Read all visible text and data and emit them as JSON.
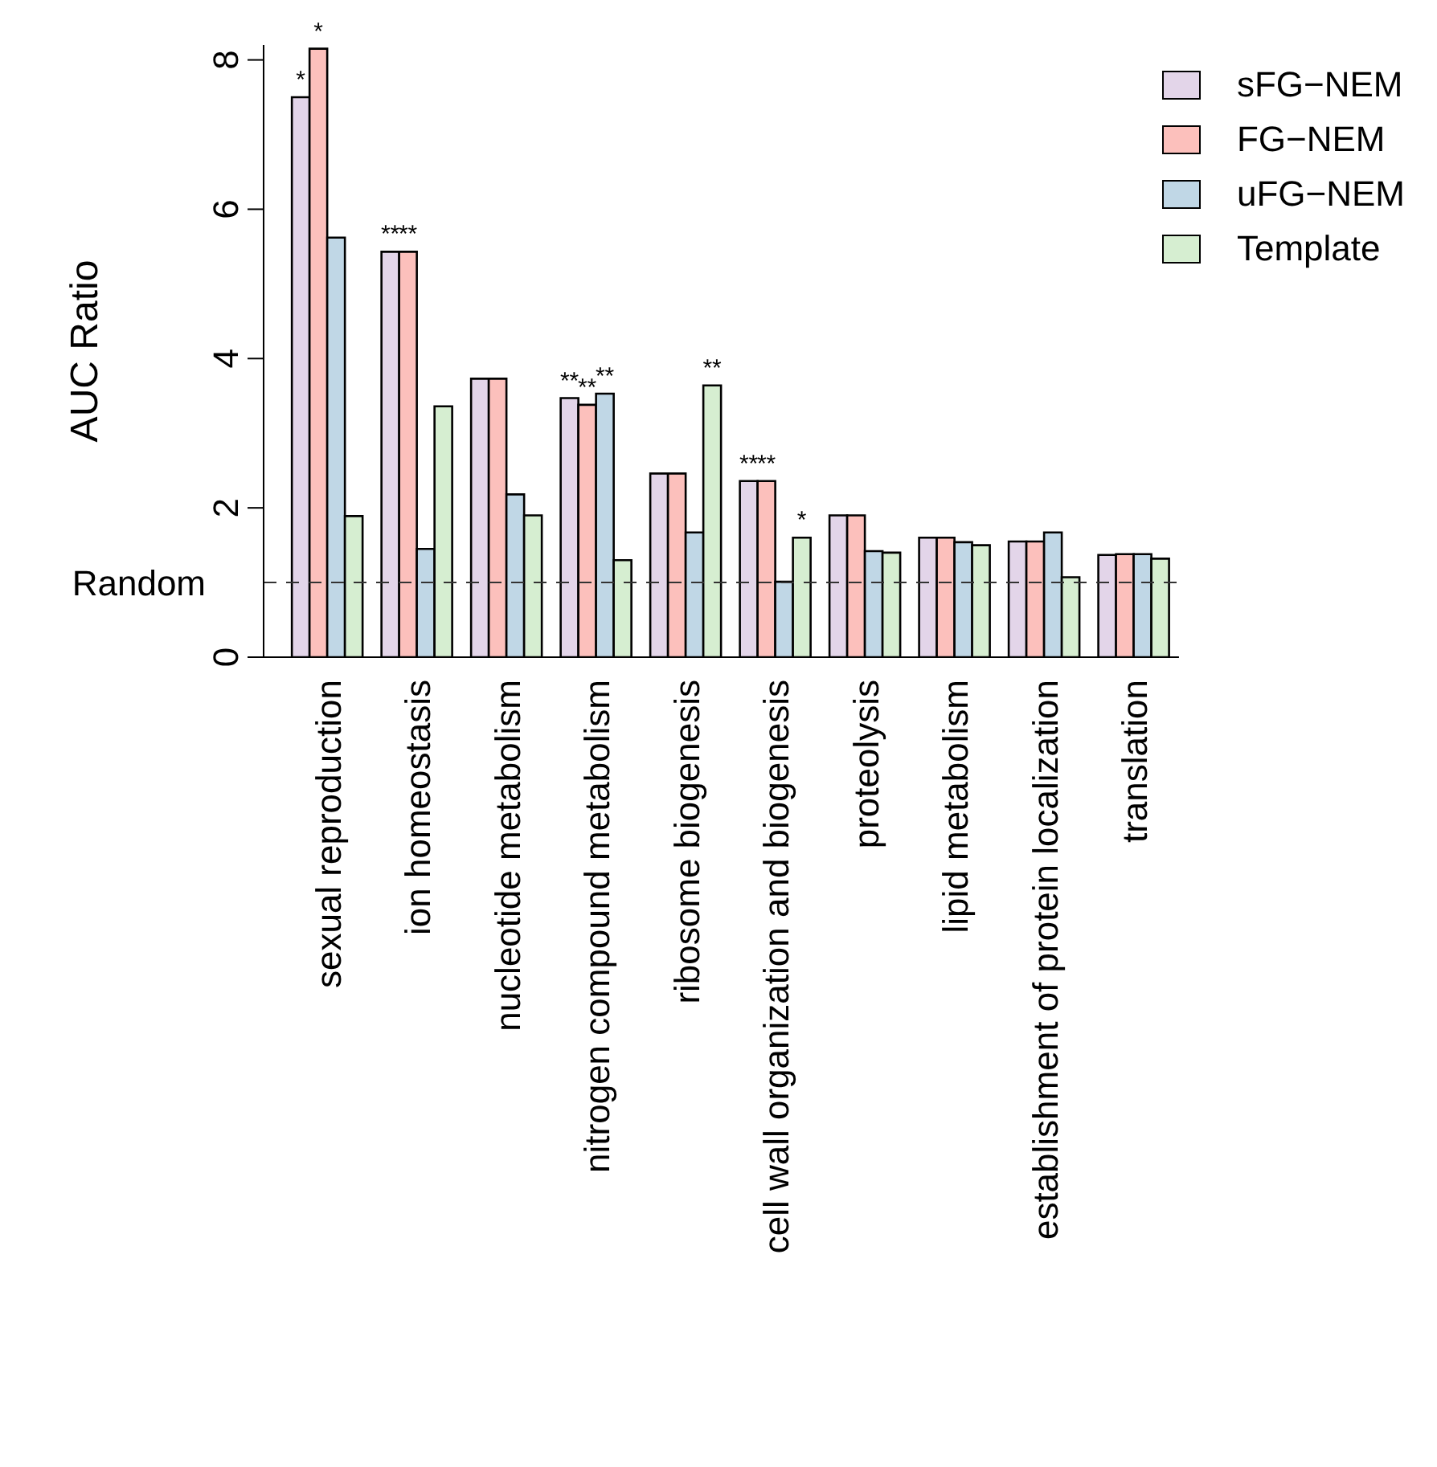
{
  "chart_data": {
    "type": "bar",
    "ylabel": "AUC Ratio",
    "categories": [
      "sexual reproduction",
      "ion homeostasis",
      "nucleotide metabolism",
      "nitrogen compound metabolism",
      "ribosome biogenesis",
      "cell wall organization and biogenesis",
      "proteolysis",
      "lipid metabolism",
      "establishment of protein localization",
      "translation"
    ],
    "series": [
      {
        "name": "sFG−NEM",
        "color": "#e3d5e9",
        "values": [
          7.5,
          5.43,
          3.73,
          3.47,
          2.46,
          2.36,
          1.9,
          1.6,
          1.55,
          1.37
        ],
        "value_labels": [
          "*",
          "**",
          null,
          "**",
          null,
          "**",
          null,
          null,
          null,
          null
        ]
      },
      {
        "name": "FG−NEM",
        "color": "#fcc0bc",
        "values": [
          8.15,
          5.43,
          3.73,
          3.38,
          2.46,
          2.36,
          1.9,
          1.6,
          1.55,
          1.38
        ],
        "value_labels": [
          "*",
          "**",
          null,
          "**",
          null,
          "**",
          null,
          null,
          null,
          null
        ]
      },
      {
        "name": "uFG−NEM",
        "color": "#c0d7e6",
        "values": [
          5.62,
          1.45,
          2.18,
          3.53,
          1.67,
          1.01,
          1.42,
          1.54,
          1.67,
          1.38
        ],
        "value_labels": [
          null,
          null,
          null,
          "**",
          null,
          null,
          null,
          null,
          null,
          null
        ]
      },
      {
        "name": "Template",
        "color": "#d6eed1",
        "values": [
          1.89,
          3.36,
          1.9,
          1.3,
          3.64,
          1.6,
          1.4,
          1.5,
          1.07,
          1.32
        ],
        "value_labels": [
          null,
          null,
          null,
          null,
          "**",
          "*",
          null,
          null,
          null,
          null
        ]
      }
    ],
    "ylim": [
      0,
      8.2
    ],
    "yticks": [
      0,
      2,
      4,
      6,
      8
    ],
    "ref_lines": [
      {
        "axis": "y",
        "value": 1,
        "label": "Random",
        "line_style": "dashed",
        "color": "#333333"
      }
    ],
    "legend": "top right",
    "grid": false
  }
}
